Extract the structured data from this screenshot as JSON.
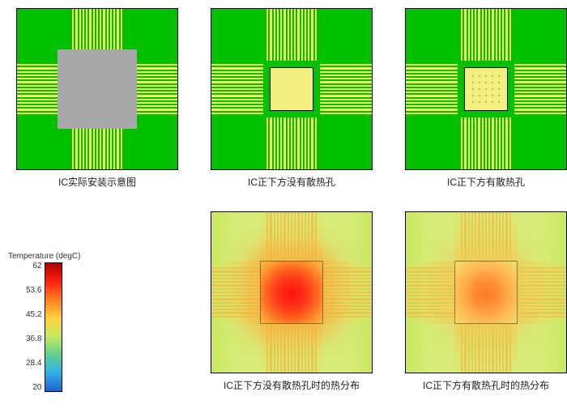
{
  "captions": {
    "top1": "IC实际安装示意图",
    "top2": "IC正下方没有散热孔",
    "top3": "IC正下方有散热孔",
    "bot2": "IC正下方没有散热孔时的热分布",
    "bot3": "IC正下方有散热孔时的热分布"
  },
  "legend": {
    "title": "Temperature (degC)",
    "labels": [
      "62",
      "53.6",
      "45.2",
      "36.8",
      "28.4",
      "20"
    ],
    "gradient_stops": [
      "#b00000",
      "#ff2010",
      "#ff8020",
      "#ffd040",
      "#c8e860",
      "#60d090",
      "#30b0e8",
      "#2060d0"
    ]
  },
  "pcb": {
    "board_color": "#00c000",
    "trace_color": "#f0f060",
    "trace_count_per_side": 15,
    "chip_gray": "#a8a8a8",
    "chip_yellow": "#f4f080",
    "via_grid": 5
  },
  "heatmaps": {
    "trace_color": "#e8c850",
    "corner_color": "#c8e860",
    "mid_color": "#d8ec78",
    "no_vias_peak_color": "#ff1010",
    "with_vias_peak_color": "#ff7828",
    "no_vias_peak_degC": 62,
    "with_vias_peak_degC": 50,
    "ambient_degC": 24
  },
  "structure": "infographic",
  "panels_layout": [
    3,
    3
  ]
}
